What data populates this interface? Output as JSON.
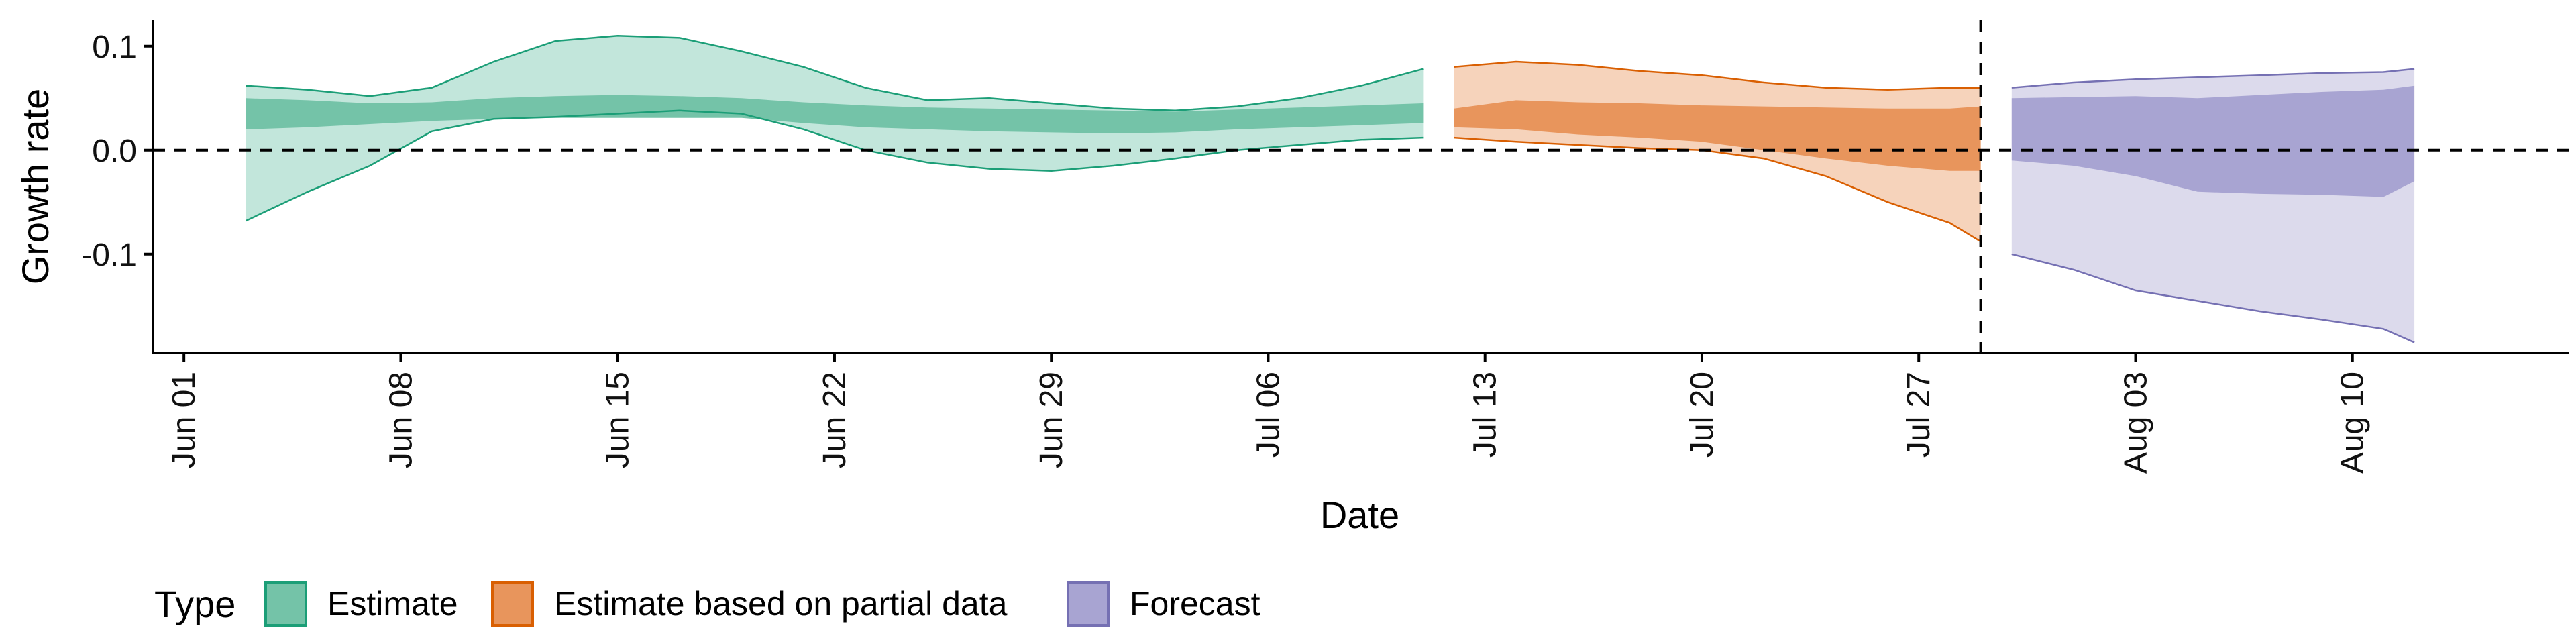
{
  "chart_data": {
    "type": "area",
    "title": "",
    "xlabel": "Date",
    "ylabel": "Growth rate",
    "xlim": [
      "2020-05-31",
      "2020-08-17"
    ],
    "ylim": [
      -0.195,
      0.125
    ],
    "yticks": [
      0.1,
      0.0,
      -0.1
    ],
    "ytick_labels": [
      "0.1",
      "0.0",
      "-0.1"
    ],
    "xticks": [
      "2020-06-01",
      "2020-06-08",
      "2020-06-15",
      "2020-06-22",
      "2020-06-29",
      "2020-07-06",
      "2020-07-13",
      "2020-07-20",
      "2020-07-27",
      "2020-08-03",
      "2020-08-10"
    ],
    "xtick_labels": [
      "Jun 01",
      "Jun 08",
      "Jun 15",
      "Jun 22",
      "Jun 29",
      "Jul 06",
      "Jul 13",
      "Jul 20",
      "Jul 27",
      "Aug 03",
      "Aug 10"
    ],
    "hline": 0,
    "vline_date": "2020-07-29",
    "grid": false,
    "legend": {
      "title": "Type",
      "position": "bottom-left",
      "entries": [
        "Estimate",
        "Estimate based on partial data",
        "Forecast"
      ]
    },
    "series": [
      {
        "name": "Estimate",
        "color": "#1b9e77",
        "fill_outer": "#c2e6db",
        "fill_inner": "#74c3a8",
        "dates": [
          "2020-06-03",
          "2020-06-05",
          "2020-06-07",
          "2020-06-09",
          "2020-06-11",
          "2020-06-13",
          "2020-06-15",
          "2020-06-17",
          "2020-06-19",
          "2020-06-21",
          "2020-06-23",
          "2020-06-25",
          "2020-06-27",
          "2020-06-29",
          "2020-07-01",
          "2020-07-03",
          "2020-07-05",
          "2020-07-07",
          "2020-07-09",
          "2020-07-11"
        ],
        "outer_lower": [
          -0.068,
          -0.04,
          -0.015,
          0.018,
          0.03,
          0.032,
          0.035,
          0.038,
          0.035,
          0.02,
          0.0,
          -0.012,
          -0.018,
          -0.02,
          -0.015,
          -0.008,
          0.0,
          0.005,
          0.01,
          0.012
        ],
        "outer_upper": [
          0.062,
          0.058,
          0.052,
          0.06,
          0.085,
          0.105,
          0.11,
          0.108,
          0.095,
          0.08,
          0.06,
          0.048,
          0.05,
          0.045,
          0.04,
          0.038,
          0.042,
          0.05,
          0.062,
          0.078
        ],
        "inner_lower": [
          0.02,
          0.022,
          0.025,
          0.028,
          0.03,
          0.031,
          0.031,
          0.031,
          0.031,
          0.026,
          0.022,
          0.02,
          0.018,
          0.017,
          0.016,
          0.017,
          0.02,
          0.022,
          0.024,
          0.026
        ],
        "inner_upper": [
          0.05,
          0.048,
          0.045,
          0.046,
          0.05,
          0.052,
          0.053,
          0.052,
          0.05,
          0.046,
          0.043,
          0.041,
          0.04,
          0.039,
          0.038,
          0.037,
          0.039,
          0.041,
          0.043,
          0.045
        ]
      },
      {
        "name": "Estimate based on partial data",
        "color": "#d95f02",
        "fill_outer": "#f6d3bb",
        "fill_inner": "#e8955c",
        "dates": [
          "2020-07-12",
          "2020-07-14",
          "2020-07-16",
          "2020-07-18",
          "2020-07-20",
          "2020-07-22",
          "2020-07-24",
          "2020-07-26",
          "2020-07-28",
          "2020-07-29"
        ],
        "outer_lower": [
          0.012,
          0.008,
          0.005,
          0.002,
          0.0,
          -0.008,
          -0.025,
          -0.05,
          -0.07,
          -0.088
        ],
        "outer_upper": [
          0.08,
          0.085,
          0.082,
          0.076,
          0.072,
          0.065,
          0.06,
          0.058,
          0.06,
          0.06
        ],
        "inner_lower": [
          0.022,
          0.02,
          0.015,
          0.012,
          0.008,
          0.0,
          -0.008,
          -0.015,
          -0.02,
          -0.02
        ],
        "inner_upper": [
          0.04,
          0.048,
          0.046,
          0.045,
          0.043,
          0.042,
          0.041,
          0.04,
          0.04,
          0.042
        ]
      },
      {
        "name": "Forecast",
        "color": "#7570b3",
        "fill_outer": "#dcdaec",
        "fill_inner": "#a8a4d2",
        "dates": [
          "2020-07-30",
          "2020-08-01",
          "2020-08-03",
          "2020-08-05",
          "2020-08-07",
          "2020-08-09",
          "2020-08-11",
          "2020-08-12"
        ],
        "outer_lower": [
          -0.1,
          -0.115,
          -0.135,
          -0.145,
          -0.155,
          -0.163,
          -0.172,
          -0.185
        ],
        "outer_upper": [
          0.06,
          0.065,
          0.068,
          0.07,
          0.072,
          0.074,
          0.075,
          0.078
        ],
        "inner_lower": [
          -0.01,
          -0.015,
          -0.025,
          -0.04,
          -0.042,
          -0.043,
          -0.045,
          -0.03
        ],
        "inner_upper": [
          0.05,
          0.051,
          0.052,
          0.05,
          0.053,
          0.056,
          0.058,
          0.062
        ]
      }
    ]
  }
}
